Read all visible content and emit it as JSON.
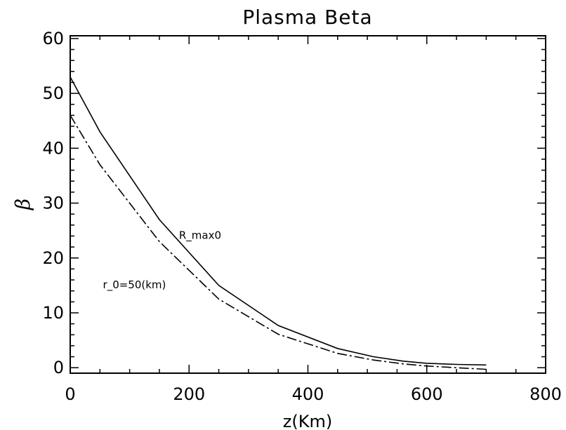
{
  "chart_data": {
    "type": "line",
    "title": "Plasma Beta",
    "xlabel": "z(Km)",
    "ylabel": "β",
    "xlim": [
      0,
      800
    ],
    "ylim": [
      -1,
      60.5
    ],
    "xticks": [
      0,
      200,
      400,
      600,
      800
    ],
    "xtick_labels": [
      "0",
      "200",
      "400",
      "600",
      "800"
    ],
    "yticks": [
      0,
      10,
      20,
      30,
      40,
      50,
      60
    ],
    "ytick_labels": [
      "0",
      "10",
      "20",
      "30",
      "40",
      "50",
      "60"
    ],
    "grid": false,
    "annotations": [
      {
        "text": "R_max0",
        "x": 183,
        "y": 23.5
      },
      {
        "text": "r_0=50(km)",
        "x": 55,
        "y": 14.5
      }
    ],
    "series": [
      {
        "style": "solid",
        "x": [
          0,
          50,
          150,
          250,
          350,
          450,
          510,
          560,
          600,
          650,
          700
        ],
        "y": [
          53,
          43,
          27,
          15,
          7.7,
          3.5,
          2.0,
          1.2,
          0.8,
          0.6,
          0.5
        ]
      },
      {
        "style": "dashdot",
        "x": [
          0,
          50,
          150,
          250,
          350,
          450,
          510,
          560,
          600,
          650,
          700
        ],
        "y": [
          46,
          37,
          23,
          12.5,
          6.1,
          2.6,
          1.4,
          0.7,
          0.3,
          0.0,
          -0.3
        ]
      }
    ]
  }
}
